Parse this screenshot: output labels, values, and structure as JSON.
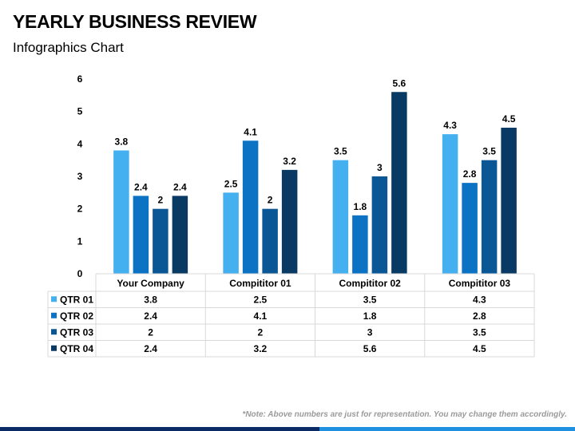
{
  "page": {
    "title": "YEARLY BUSINESS REVIEW",
    "subtitle": "Infographics Chart",
    "note": "*Note: Above numbers are just for representation. You may change them accordingly."
  },
  "colors": {
    "series": [
      "#45b0f0",
      "#0b72c4",
      "#0b5796",
      "#083a63"
    ],
    "footer_dark": "#0a2a66",
    "footer_light": "#1f8fe0",
    "grid": "#d9d9d9"
  },
  "chart_data": {
    "type": "bar",
    "categories": [
      "Your Company",
      "Compititor 01",
      "Compititor 02",
      "Compititor 03"
    ],
    "series": [
      {
        "name": "QTR 01",
        "values": [
          3.8,
          2.5,
          3.5,
          4.3
        ]
      },
      {
        "name": "QTR 02",
        "values": [
          2.4,
          4.1,
          1.8,
          2.8
        ]
      },
      {
        "name": "QTR 03",
        "values": [
          2,
          2,
          3,
          3.5
        ]
      },
      {
        "name": "QTR 04",
        "values": [
          2.4,
          3.2,
          5.6,
          4.5
        ]
      }
    ],
    "yticks": [
      "0",
      "1",
      "2",
      "3",
      "4",
      "5",
      "6"
    ],
    "ylim": [
      0,
      6
    ],
    "grid": false,
    "data_table": true
  }
}
